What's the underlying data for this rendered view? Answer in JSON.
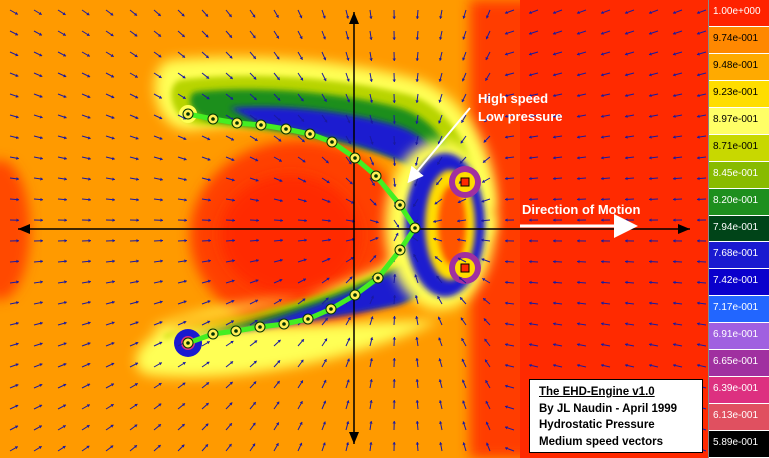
{
  "annotations": {
    "high_speed": "High speed",
    "low_pressure": "Low pressure",
    "direction": "Direction of Motion"
  },
  "info_box": {
    "title": "The EHD-Engine v1.0",
    "author": "By JL Naudin - April 1999",
    "line3": "Hydrostatic Pressure",
    "line4": "Medium speed vectors"
  },
  "legend": {
    "entries": [
      {
        "label": "1.00e+000",
        "color": "#ff2200",
        "text": "#ffffff"
      },
      {
        "label": "9.74e-001",
        "color": "#ff8800",
        "text": "#000000"
      },
      {
        "label": "9.48e-001",
        "color": "#ffaa00",
        "text": "#000000"
      },
      {
        "label": "9.23e-001",
        "color": "#ffdd00",
        "text": "#000000"
      },
      {
        "label": "8.97e-001",
        "color": "#ffff66",
        "text": "#000000"
      },
      {
        "label": "8.71e-001",
        "color": "#c8d800",
        "text": "#000000"
      },
      {
        "label": "8.45e-001",
        "color": "#88bb00",
        "text": "#ffffff"
      },
      {
        "label": "8.20e-001",
        "color": "#1e8f1e",
        "text": "#ffffff"
      },
      {
        "label": "7.94e-001",
        "color": "#004418",
        "text": "#ffffff"
      },
      {
        "label": "7.68e-001",
        "color": "#1a1ad0",
        "text": "#ffffff"
      },
      {
        "label": "7.42e-001",
        "color": "#0a00cc",
        "text": "#ffffff"
      },
      {
        "label": "7.17e-001",
        "color": "#2266ff",
        "text": "#ffffff"
      },
      {
        "label": "6.91e-001",
        "color": "#a060e0",
        "text": "#ffffff"
      },
      {
        "label": "6.65e-001",
        "color": "#a030a0",
        "text": "#ffffff"
      },
      {
        "label": "6.39e-001",
        "color": "#dd3080",
        "text": "#ffffff"
      },
      {
        "label": "6.13e-001",
        "color": "#e05060",
        "text": "#ffffff"
      },
      {
        "label": "5.89e-001",
        "color": "#000000",
        "text": "#ffffff"
      }
    ]
  },
  "colors": {
    "background": "#ff8c00",
    "high_pressure": "#ff3300",
    "low_pressure_band": "#1a1ad0",
    "electrode_line": "#44ee22",
    "vector": "#1a1aa0"
  }
}
